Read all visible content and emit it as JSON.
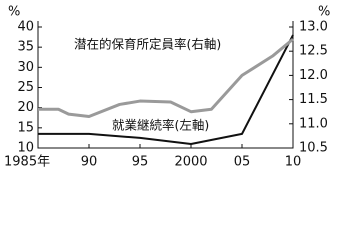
{
  "chart_data": {
    "type": "line",
    "ylabel": "%",
    "y2label": "%",
    "xlim": [
      1985,
      2010
    ],
    "xticks": [
      {
        "value": 1985,
        "label": "1985年"
      },
      {
        "value": 1990,
        "label": "90"
      },
      {
        "value": 1995,
        "label": "95"
      },
      {
        "value": 2000,
        "label": "2000"
      },
      {
        "value": 2005,
        "label": "05"
      },
      {
        "value": 2010,
        "label": "10"
      }
    ],
    "ylim": [
      10,
      40
    ],
    "yticks": [
      10,
      15,
      20,
      25,
      30,
      35,
      40
    ],
    "y2lim": [
      10.5,
      13
    ],
    "y2ticks": [
      10.5,
      {
        "value": 11,
        "label": "11.0"
      },
      11.5,
      {
        "value": 12,
        "label": "12.0"
      },
      12.5,
      {
        "value": 13,
        "label": "13.0"
      }
    ],
    "series": [
      {
        "name": "就業継続率(左軸)",
        "color": "#111111",
        "x": [
          1985,
          1990,
          1995,
          2000,
          2005,
          2010
        ],
        "values": [
          13.5,
          13.5,
          12.5,
          11,
          13.5,
          38
        ]
      },
      {
        "name": "潜在的保育所定員率(右軸)",
        "color": "#9a9a9a",
        "axis": "y2",
        "x": [
          1985,
          1987,
          1988,
          1990,
          1993,
          1995,
          1998,
          2000,
          2002,
          2005,
          2008,
          2010
        ],
        "values": [
          11.3,
          11.3,
          11.2,
          11.15,
          11.4,
          11.47,
          11.45,
          11.25,
          11.3,
          12.0,
          12.4,
          12.75
        ]
      }
    ]
  }
}
